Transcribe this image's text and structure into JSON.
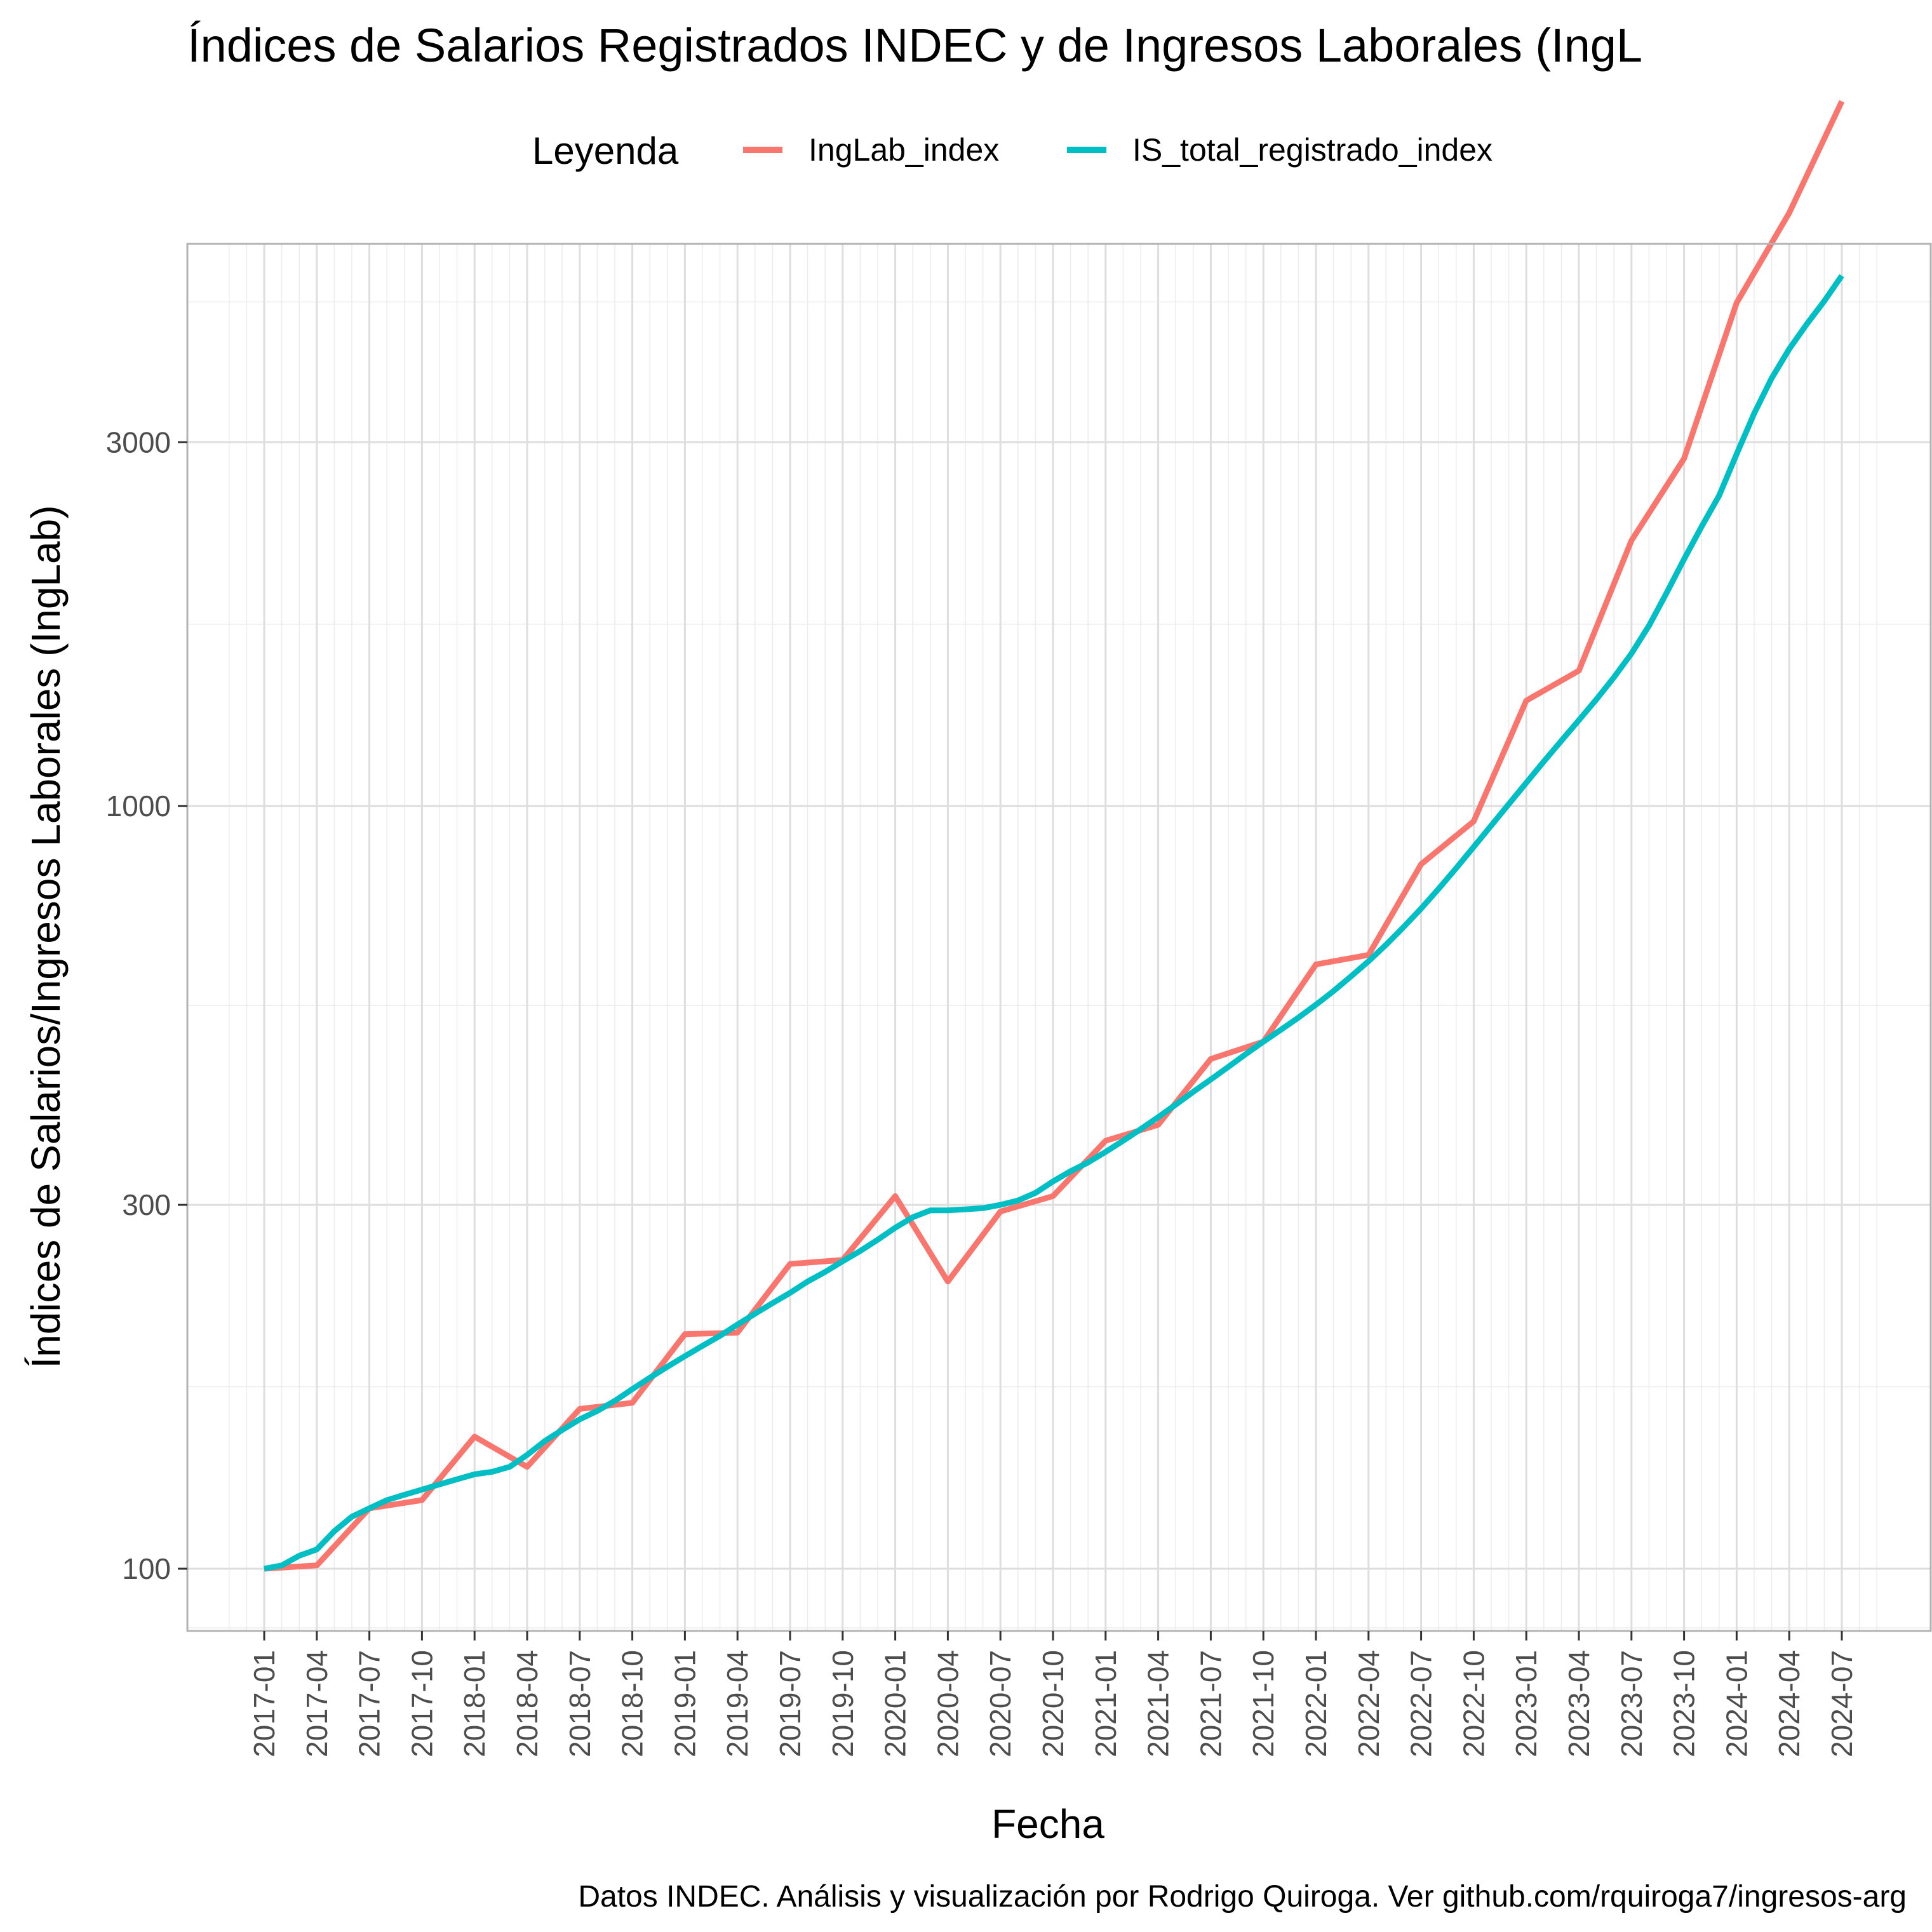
{
  "chart_data": {
    "type": "line",
    "title": "Índices de Salarios Registrados INDEC y de Ingresos Laborales (IngL",
    "xlabel": "Fecha",
    "ylabel": "Índices de Salarios/Ingresos Laborales (IngLab)",
    "caption": "Datos INDEC. Análisis y visualización por Rodrigo Quiroga. Ver github.com/rquiroga7/ingresos-arg",
    "legend": {
      "title": "Leyenda",
      "position": "top"
    },
    "y_scale": "log",
    "ylim": [
      70,
      7000
    ],
    "yticks": [
      100,
      300,
      1000,
      3000
    ],
    "ytick_labels": [
      "100",
      "300",
      "1000",
      "3000"
    ],
    "grid": true,
    "x_ticks": [
      "2017-01",
      "2017-04",
      "2017-07",
      "2017-10",
      "2018-01",
      "2018-04",
      "2018-07",
      "2018-10",
      "2019-01",
      "2019-04",
      "2019-07",
      "2019-10",
      "2020-01",
      "2020-04",
      "2020-07",
      "2020-10",
      "2021-01",
      "2021-04",
      "2021-07",
      "2021-10",
      "2022-01",
      "2022-04",
      "2022-07",
      "2022-10",
      "2023-01",
      "2023-04",
      "2023-07",
      "2023-10",
      "2024-01",
      "2024-04",
      "2024-07"
    ],
    "series": [
      {
        "name": "IngLab_index",
        "color": "#F8766D",
        "points": [
          [
            "2017-01",
            100
          ],
          [
            "2017-04",
            101
          ],
          [
            "2017-07",
            120
          ],
          [
            "2017-10",
            123
          ],
          [
            "2018-01",
            149
          ],
          [
            "2018-04",
            136
          ],
          [
            "2018-07",
            162
          ],
          [
            "2018-10",
            165
          ],
          [
            "2019-01",
            203
          ],
          [
            "2019-04",
            204
          ],
          [
            "2019-07",
            251
          ],
          [
            "2019-10",
            254
          ],
          [
            "2020-01",
            308
          ],
          [
            "2020-04",
            238
          ],
          [
            "2020-07",
            294
          ],
          [
            "2020-10",
            308
          ],
          [
            "2021-01",
            364
          ],
          [
            "2021-04",
            382
          ],
          [
            "2021-07",
            466
          ],
          [
            "2021-10",
            491
          ],
          [
            "2022-01",
            620
          ],
          [
            "2022-04",
            638
          ],
          [
            "2022-07",
            839
          ],
          [
            "2022-10",
            955
          ],
          [
            "2023-01",
            1375
          ],
          [
            "2023-04",
            1505
          ],
          [
            "2023-07",
            2230
          ],
          [
            "2023-10",
            2855
          ],
          [
            "2024-01",
            4570
          ],
          [
            "2024-04",
            5995
          ],
          [
            "2024-07",
            8395
          ]
        ]
      },
      {
        "name": "IS_total_registrado_index",
        "color": "#00BFC4",
        "points": [
          [
            "2017-01",
            100
          ],
          [
            "2017-02",
            101
          ],
          [
            "2017-03",
            104
          ],
          [
            "2017-04",
            106
          ],
          [
            "2017-05",
            112
          ],
          [
            "2017-06",
            117
          ],
          [
            "2017-07",
            120
          ],
          [
            "2017-08",
            123
          ],
          [
            "2017-09",
            125
          ],
          [
            "2017-10",
            127
          ],
          [
            "2017-11",
            129
          ],
          [
            "2017-12",
            131
          ],
          [
            "2018-01",
            133
          ],
          [
            "2018-02",
            134
          ],
          [
            "2018-03",
            136
          ],
          [
            "2018-04",
            141
          ],
          [
            "2018-05",
            147
          ],
          [
            "2018-06",
            152
          ],
          [
            "2018-07",
            157
          ],
          [
            "2018-08",
            161
          ],
          [
            "2018-09",
            166
          ],
          [
            "2018-10",
            172
          ],
          [
            "2018-11",
            178
          ],
          [
            "2018-12",
            184
          ],
          [
            "2019-01",
            190
          ],
          [
            "2019-02",
            196
          ],
          [
            "2019-03",
            202
          ],
          [
            "2019-04",
            209
          ],
          [
            "2019-05",
            216
          ],
          [
            "2019-06",
            223
          ],
          [
            "2019-07",
            230
          ],
          [
            "2019-08",
            238
          ],
          [
            "2019-09",
            245
          ],
          [
            "2019-10",
            253
          ],
          [
            "2019-11",
            261
          ],
          [
            "2019-12",
            270
          ],
          [
            "2020-01",
            280
          ],
          [
            "2020-02",
            289
          ],
          [
            "2020-03",
            295
          ],
          [
            "2020-04",
            295
          ],
          [
            "2020-05",
            296
          ],
          [
            "2020-06",
            297
          ],
          [
            "2020-07",
            300
          ],
          [
            "2020-08",
            304
          ],
          [
            "2020-09",
            311
          ],
          [
            "2020-10",
            322
          ],
          [
            "2020-11",
            332
          ],
          [
            "2020-12",
            341
          ],
          [
            "2021-01",
            352
          ],
          [
            "2021-02",
            364
          ],
          [
            "2021-03",
            377
          ],
          [
            "2021-04",
            391
          ],
          [
            "2021-05",
            406
          ],
          [
            "2021-06",
            422
          ],
          [
            "2021-07",
            438
          ],
          [
            "2021-08",
            455
          ],
          [
            "2021-09",
            473
          ],
          [
            "2021-10",
            491
          ],
          [
            "2021-11",
            509
          ],
          [
            "2021-12",
            528
          ],
          [
            "2022-01",
            549
          ],
          [
            "2022-02",
            572
          ],
          [
            "2022-03",
            598
          ],
          [
            "2022-04",
            626
          ],
          [
            "2022-05",
            658
          ],
          [
            "2022-06",
            694
          ],
          [
            "2022-07",
            734
          ],
          [
            "2022-08",
            779
          ],
          [
            "2022-09",
            829
          ],
          [
            "2022-10",
            884
          ],
          [
            "2022-11",
            943
          ],
          [
            "2022-12",
            1006
          ],
          [
            "2023-01",
            1073
          ],
          [
            "2023-02",
            1144
          ],
          [
            "2023-03",
            1218
          ],
          [
            "2023-04",
            1296
          ],
          [
            "2023-05",
            1380
          ],
          [
            "2023-06",
            1475
          ],
          [
            "2023-07",
            1585
          ],
          [
            "2023-08",
            1724
          ],
          [
            "2023-09",
            1903
          ],
          [
            "2023-10",
            2107
          ],
          [
            "2023-11",
            2325
          ],
          [
            "2023-12",
            2553
          ],
          [
            "2024-01",
            2894
          ],
          [
            "2024-02",
            3272
          ],
          [
            "2024-03",
            3640
          ],
          [
            "2024-04",
            3975
          ],
          [
            "2024-05",
            4285
          ],
          [
            "2024-06",
            4594
          ],
          [
            "2024-07",
            4960
          ]
        ]
      }
    ]
  }
}
